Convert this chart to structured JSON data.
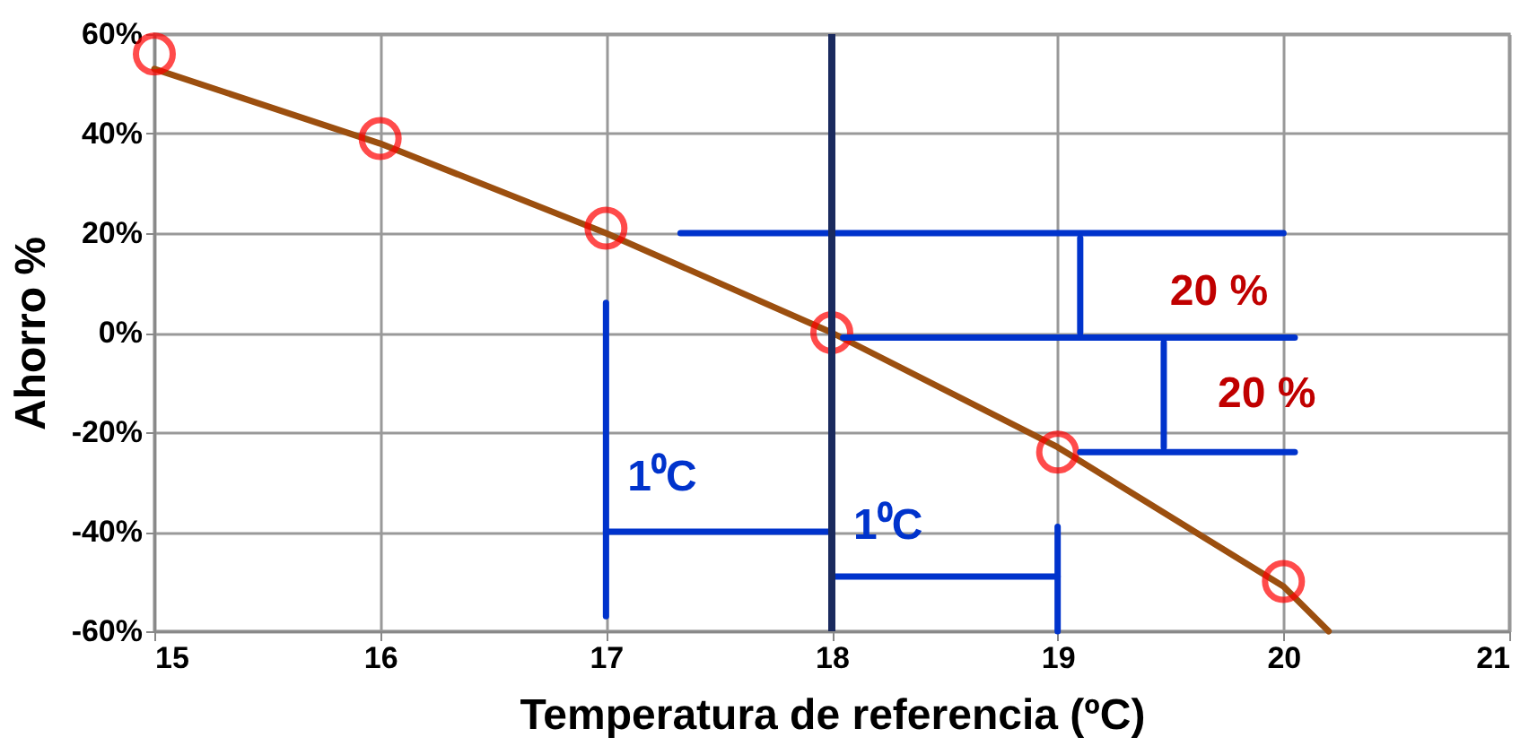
{
  "chart_data": {
    "type": "line",
    "xlabel": "Temperatura de referencia (ºC)",
    "ylabel": "Ahorro %",
    "xlim": [
      15,
      21
    ],
    "xticks": [
      15,
      16,
      17,
      18,
      19,
      20,
      21
    ],
    "ylim": [
      -60,
      60
    ],
    "yticks": [
      {
        "value": -60,
        "label": "-60%"
      },
      {
        "value": -40,
        "label": "-40%"
      },
      {
        "value": -20,
        "label": "-20%"
      },
      {
        "value": 0,
        "label": "0%"
      },
      {
        "value": 20,
        "label": "20%"
      },
      {
        "value": 40,
        "label": "40%"
      },
      {
        "value": 60,
        "label": "60%"
      }
    ],
    "grid": true,
    "line_style": "solid",
    "series": [
      {
        "color": "#9c4f0f",
        "x": [
          15,
          16,
          17,
          18,
          19,
          20,
          20.2
        ],
        "values": [
          53,
          38,
          20,
          0,
          -23,
          -51,
          -60
        ]
      },
      {
        "type": "scatter",
        "marker": "circle",
        "color": "#ff0000",
        "x": [
          15,
          16,
          17,
          18,
          19,
          20
        ],
        "values": [
          56,
          39,
          21,
          0,
          -24,
          -50
        ]
      },
      {
        "type": "line",
        "color": "#0033cc",
        "x": [
          17,
          17
        ],
        "values": [
          6,
          -57
        ]
      },
      {
        "type": "line",
        "color": "#0033cc",
        "x": [
          17,
          18
        ],
        "values": [
          -40,
          -40
        ]
      },
      {
        "type": "line",
        "color": "#0033cc",
        "x": [
          19,
          19
        ],
        "values": [
          -39,
          -60
        ]
      },
      {
        "type": "line",
        "color": "#0033cc",
        "x": [
          18,
          19
        ],
        "values": [
          -49,
          -49
        ]
      },
      {
        "type": "line",
        "color": "#0033cc",
        "x": [
          17.33,
          20
        ],
        "values": [
          20,
          20
        ]
      },
      {
        "type": "line",
        "color": "#0033cc",
        "x": [
          18.05,
          20.05
        ],
        "values": [
          -1,
          -1
        ]
      },
      {
        "type": "line",
        "color": "#0033cc",
        "x": [
          19.1,
          20.05
        ],
        "values": [
          -24,
          -24
        ]
      },
      {
        "type": "line",
        "color": "#0033cc",
        "x": [
          19.1,
          19.1
        ],
        "values": [
          19,
          0
        ]
      },
      {
        "type": "line",
        "color": "#0033cc",
        "x": [
          19.47,
          19.47
        ],
        "values": [
          -2,
          -23
        ]
      }
    ],
    "ref_lines": [
      {
        "axis": "x",
        "value": 18,
        "color": "#1a2a5e"
      }
    ],
    "annotations": [
      "1⁰C",
      "1⁰C",
      "20 %",
      "20 %"
    ]
  }
}
